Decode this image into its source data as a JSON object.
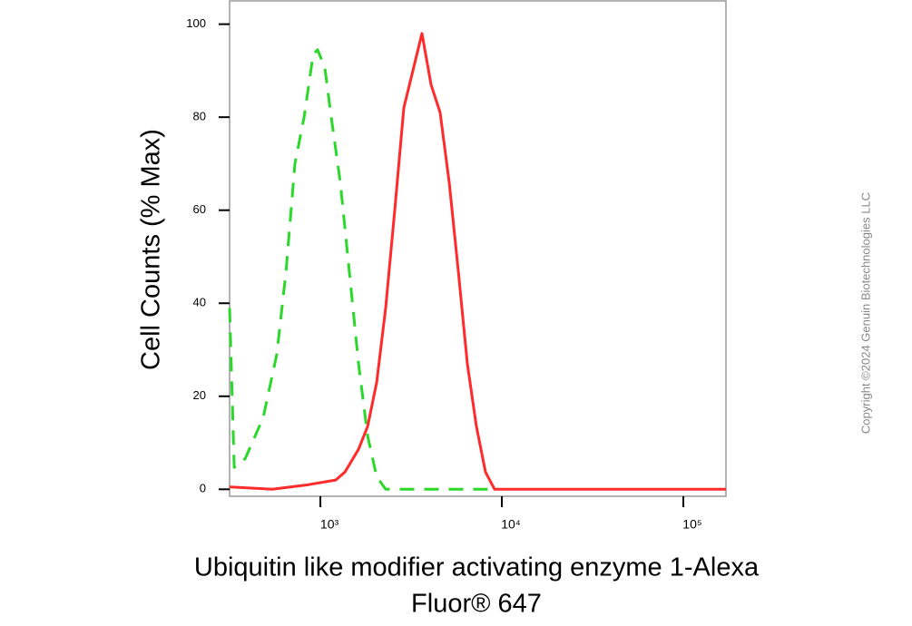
{
  "chart_data": {
    "type": "line",
    "ylabel": "Cell Counts (% Max)",
    "xlabel": [
      "Ubiquitin like modifier activating enzyme 1-Alexa",
      "Fluor® 647"
    ],
    "watermark": "Copyright ©2024 Genuin Biotechnologies LLC",
    "xscale": "log",
    "xlim": [
      316,
      171800
    ],
    "ylim": [
      -1.5,
      105
    ],
    "xticks": [
      {
        "value": 1000,
        "label": "10³"
      },
      {
        "value": 10000,
        "label": "10⁴"
      },
      {
        "value": 100000,
        "label": "10⁵"
      }
    ],
    "yticks": [
      0,
      20,
      40,
      60,
      80,
      100
    ],
    "series": [
      {
        "color": "#2ad82a",
        "dashed": true,
        "x": [
          316,
          335,
          385,
          484,
          575,
          646,
          724,
          813,
          912,
          966,
          1059,
          1148,
          1288,
          1445,
          1622,
          1820,
          2042,
          2291,
          3055,
          5433,
          9661
        ],
        "values": [
          39,
          4.7,
          6.6,
          15.4,
          29,
          46.7,
          70,
          80,
          93.5,
          94.5,
          90.6,
          80,
          66,
          46.7,
          27,
          11.5,
          2.7,
          0,
          0,
          0,
          0
        ]
      },
      {
        "color": "#ff2a2a",
        "dashed": false,
        "x": [
          316,
          543,
          861,
          1216,
          1365,
          1622,
          1820,
          2042,
          2291,
          2570,
          2884,
          3236,
          3631,
          4074,
          4571,
          5129,
          5754,
          6457,
          7244,
          8128,
          9120,
          10839,
          171800
        ],
        "values": [
          0.5,
          0,
          1,
          2,
          3.7,
          8.6,
          13.5,
          23,
          39,
          60,
          82,
          90,
          98,
          87,
          81,
          66,
          47,
          27,
          13.5,
          3.7,
          0,
          0,
          0
        ]
      }
    ]
  }
}
